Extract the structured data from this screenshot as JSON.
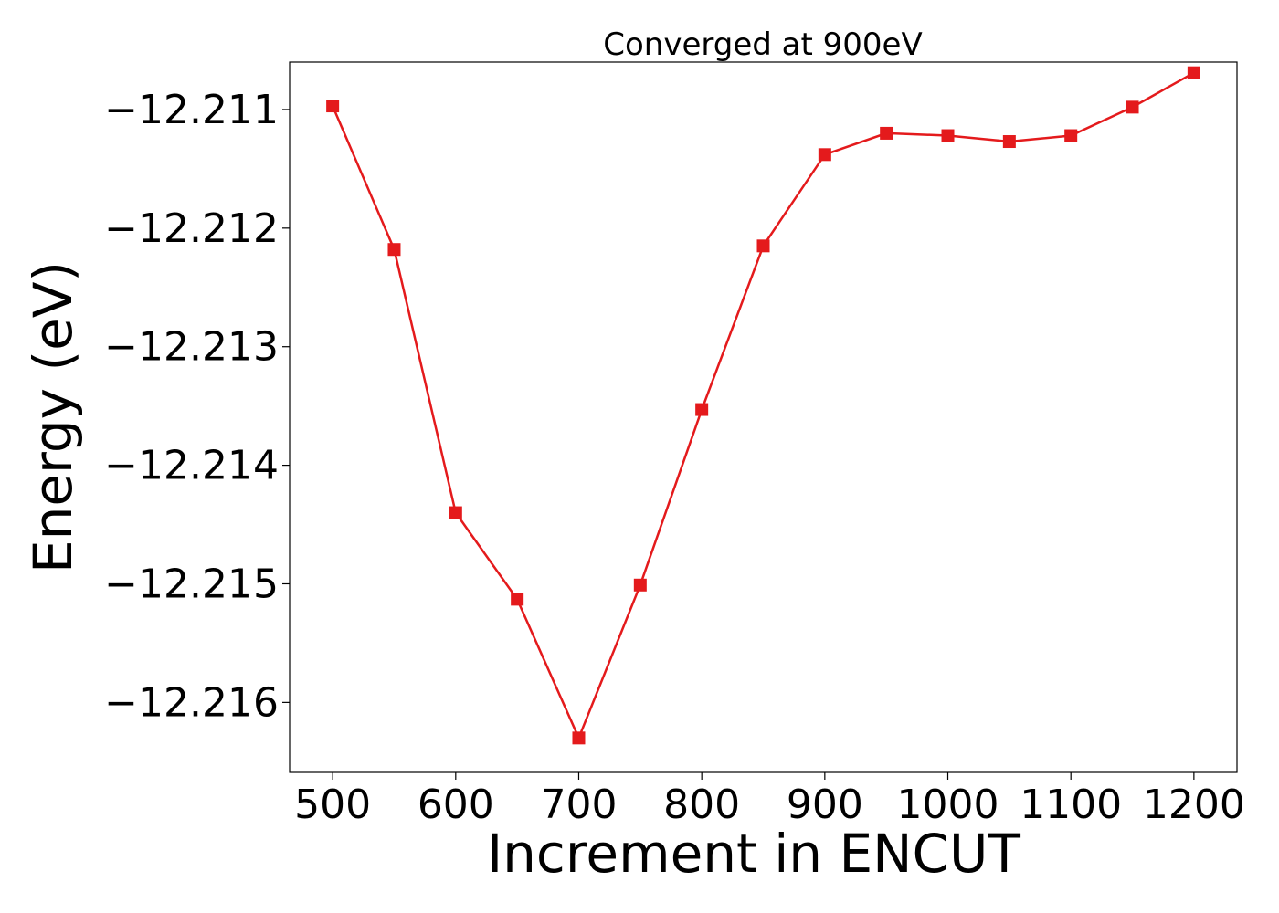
{
  "chart_data": {
    "type": "line",
    "title": "Converged at 900eV",
    "xlabel": "Increment in ENCUT",
    "ylabel": "Energy (eV)",
    "xlim": [
      465,
      1235
    ],
    "ylim": [
      -12.21659,
      -12.2106
    ],
    "x_ticks": [
      500,
      600,
      700,
      800,
      900,
      1000,
      1100,
      1200
    ],
    "y_ticks": [
      -12.211,
      -12.212,
      -12.213,
      -12.214,
      -12.215,
      -12.216
    ],
    "y_tick_labels": [
      "−12.211",
      "−12.212",
      "−12.213",
      "−12.214",
      "−12.215",
      "−12.216"
    ],
    "grid": false,
    "series": [
      {
        "color": "#e41a1c",
        "marker": "square",
        "x": [
          500,
          550,
          600,
          650,
          700,
          750,
          800,
          850,
          900,
          950,
          1000,
          1050,
          1100,
          1150,
          1200
        ],
        "y": [
          -12.21097,
          -12.21218,
          -12.2144,
          -12.21513,
          -12.2163,
          -12.21501,
          -12.21353,
          -12.21215,
          -12.21138,
          -12.2112,
          -12.21122,
          -12.21127,
          -12.21122,
          -12.21098,
          -12.21069
        ]
      }
    ]
  }
}
